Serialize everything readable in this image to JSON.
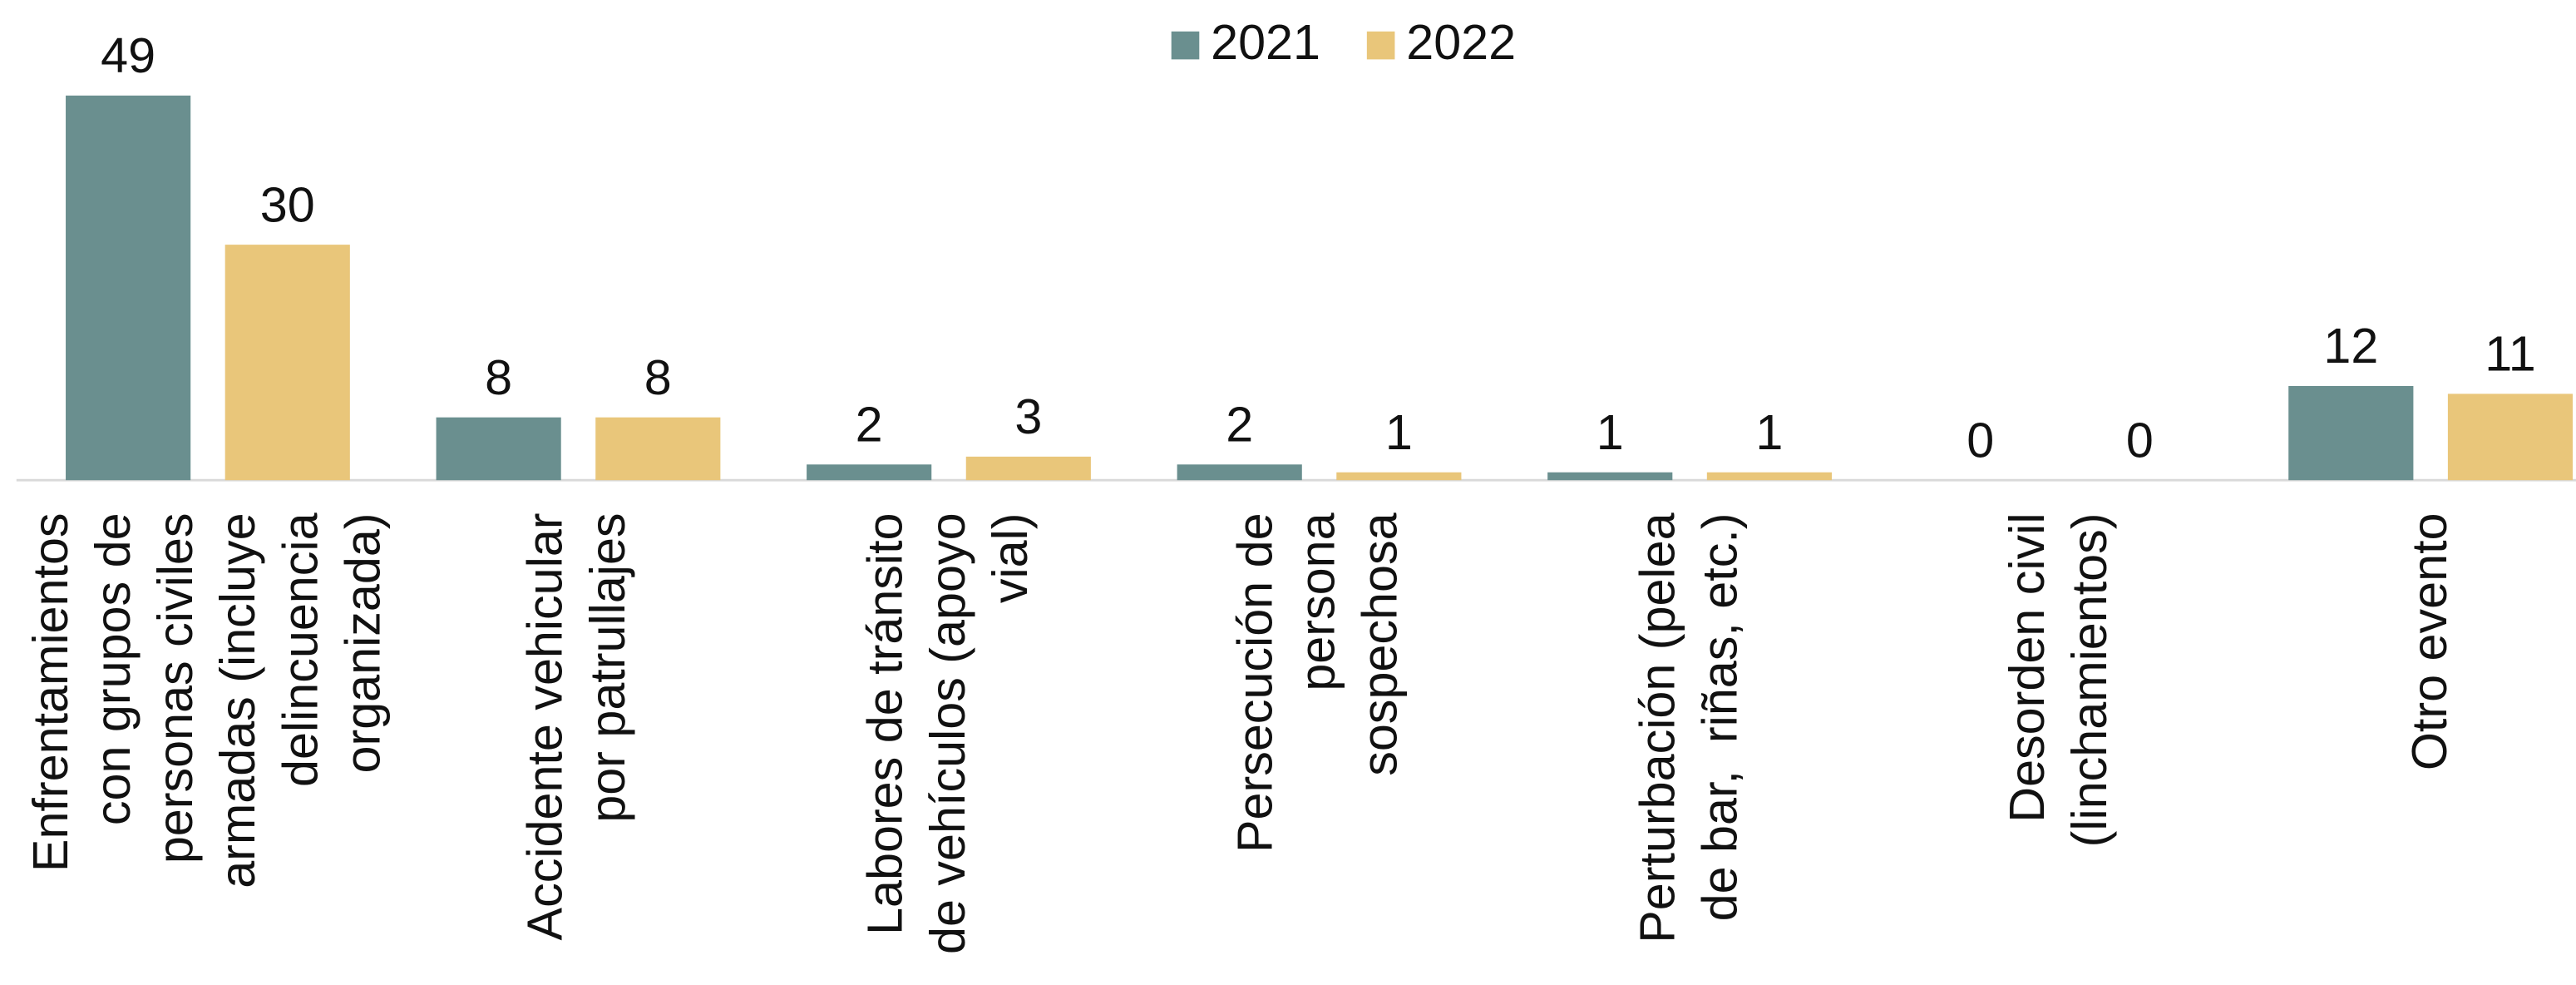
{
  "chart_data": {
    "type": "bar",
    "categories": [
      "Enfrentamientos\ncon grupos de\npersonas civiles\narmadas (incluye\ndelincuencia\norganizada)",
      "Accidente vehicular\npor patrullajes",
      "Labores de tránsito\nde vehículos (apoyo\nvial)",
      "Persecución de\npersona\nsospechosa",
      "Perturbación (pelea\nde bar,  riñas, etc.)",
      "Desorden civil\n(linchamientos)",
      "Otro evento"
    ],
    "series": [
      {
        "name": "2021",
        "color": "#6a8f8f",
        "values": [
          49,
          8,
          2,
          2,
          1,
          0,
          12
        ]
      },
      {
        "name": "2022",
        "color": "#e9c67a",
        "values": [
          30,
          8,
          3,
          1,
          1,
          0,
          11
        ]
      }
    ],
    "legend": "top"
  }
}
